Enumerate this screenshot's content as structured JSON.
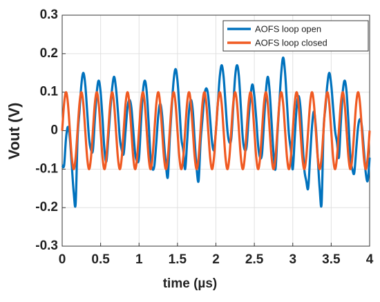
{
  "chart_data": {
    "type": "line",
    "xlabel": "time (µs)",
    "ylabel": "Vout (V)",
    "xlim": [
      0,
      4
    ],
    "ylim": [
      -0.3,
      0.3
    ],
    "xticks": [
      0,
      0.5,
      1,
      1.5,
      2,
      2.5,
      3,
      3.5,
      4
    ],
    "yticks": [
      -0.3,
      -0.2,
      -0.1,
      0,
      0.1,
      0.2,
      0.3
    ],
    "grid": true,
    "legend": "upper right",
    "x": [
      0,
      0.025,
      0.05,
      0.075,
      0.1,
      0.125,
      0.15,
      0.175,
      0.2,
      0.225,
      0.25,
      0.275,
      0.3,
      0.325,
      0.35,
      0.375,
      0.4,
      0.425,
      0.45,
      0.475,
      0.5,
      0.525,
      0.55,
      0.575,
      0.6,
      0.625,
      0.65,
      0.675,
      0.7,
      0.725,
      0.75,
      0.775,
      0.8,
      0.825,
      0.85,
      0.875,
      0.9,
      0.925,
      0.95,
      0.975,
      1,
      1.025,
      1.05,
      1.075,
      1.1,
      1.125,
      1.15,
      1.175,
      1.2,
      1.225,
      1.25,
      1.275,
      1.3,
      1.325,
      1.35,
      1.375,
      1.4,
      1.425,
      1.45,
      1.475,
      1.5,
      1.525,
      1.55,
      1.575,
      1.6,
      1.625,
      1.65,
      1.675,
      1.7,
      1.725,
      1.75,
      1.775,
      1.8,
      1.825,
      1.85,
      1.875,
      1.9,
      1.925,
      1.95,
      1.975,
      2,
      2.025,
      2.05,
      2.075,
      2.1,
      2.125,
      2.15,
      2.175,
      2.2,
      2.225,
      2.25,
      2.275,
      2.3,
      2.325,
      2.35,
      2.375,
      2.4,
      2.425,
      2.45,
      2.475,
      2.5,
      2.525,
      2.55,
      2.575,
      2.6,
      2.625,
      2.65,
      2.675,
      2.7,
      2.725,
      2.75,
      2.775,
      2.8,
      2.825,
      2.85,
      2.875,
      2.9,
      2.925,
      2.95,
      2.975,
      3,
      3.025,
      3.05,
      3.075,
      3.1,
      3.125,
      3.15,
      3.175,
      3.2,
      3.225,
      3.25,
      3.275,
      3.3,
      3.325,
      3.35,
      3.375,
      3.4,
      3.425,
      3.45,
      3.475,
      3.5,
      3.525,
      3.55,
      3.575,
      3.6,
      3.625,
      3.65,
      3.675,
      3.7,
      3.725,
      3.75,
      3.775,
      3.8,
      3.825,
      3.85,
      3.875,
      3.9,
      3.925,
      3.95,
      3.975,
      4
    ],
    "series": [
      {
        "name": "AOFS loop open",
        "color": "#0072bd",
        "values": [
          -0.09,
          -0.09,
          -0.02,
          0.01,
          -0.02,
          -0.09,
          -0.16,
          -0.19,
          -0.02,
          0.05,
          0.12,
          0.15,
          0.12,
          0.05,
          -0.02,
          -0.05,
          -0.05,
          0.03,
          0.1,
          0.13,
          0.1,
          0.03,
          -0.05,
          -0.08,
          -0.02,
          0.05,
          0.11,
          0.14,
          0.11,
          0.05,
          -0.02,
          -0.05,
          -0.06,
          0,
          0.06,
          0.08,
          0.06,
          0,
          -0.06,
          -0.08,
          -0.07,
          0.02,
          0.1,
          0.13,
          0.1,
          0.02,
          -0.07,
          -0.1,
          -0.09,
          -0.03,
          0.04,
          0.07,
          0.04,
          -0.03,
          -0.09,
          -0.12,
          -0.02,
          0.06,
          0.13,
          0.16,
          0.13,
          0.06,
          -0.02,
          -0.05,
          -0.1,
          -0.03,
          0.05,
          0.08,
          0.05,
          -0.03,
          -0.1,
          -0.13,
          -0.03,
          0.03,
          0.09,
          0.11,
          0.09,
          0.03,
          -0.03,
          -0.05,
          0,
          0.07,
          0.14,
          0.17,
          0.14,
          0.07,
          0,
          -0.03,
          -0.02,
          0.06,
          0.14,
          0.17,
          0.14,
          0.06,
          -0.02,
          -0.05,
          -0.04,
          0.03,
          0.09,
          0.12,
          0.09,
          0.03,
          -0.04,
          -0.07,
          -0.06,
          0.02,
          0.1,
          0.14,
          0.1,
          0.02,
          -0.06,
          -0.1,
          -0.01,
          0.07,
          0.15,
          0.19,
          0.15,
          0.07,
          -0.01,
          -0.05,
          -0.1,
          -0.02,
          0.06,
          0.09,
          0.06,
          -0.02,
          -0.1,
          -0.13,
          -0.15,
          -0.07,
          0.01,
          0.05,
          0.01,
          -0.07,
          -0.15,
          -0.19,
          0,
          0.06,
          0.12,
          0.15,
          0.12,
          0.06,
          0,
          -0.03,
          -0.07,
          0.02,
          0.1,
          0.13,
          0.1,
          0.02,
          -0.07,
          -0.1,
          -0.11,
          -0.05,
          0.01,
          0.03,
          0.01,
          -0.05,
          -0.11,
          -0.13,
          -0.07
        ]
      },
      {
        "name": "AOFS loop closed",
        "color": "#f05a22",
        "values": [
          0,
          0.07,
          0.1,
          0.07,
          0,
          -0.07,
          -0.1,
          -0.07,
          0,
          0.07,
          0.1,
          0.07,
          0,
          -0.07,
          -0.1,
          -0.07,
          0,
          0.07,
          0.1,
          0.07,
          0,
          -0.07,
          -0.1,
          -0.07,
          0,
          0.07,
          0.1,
          0.07,
          0,
          -0.07,
          -0.1,
          -0.07,
          0,
          0.07,
          0.1,
          0.07,
          0,
          -0.07,
          -0.1,
          -0.07,
          0,
          0.07,
          0.1,
          0.07,
          0,
          -0.07,
          -0.1,
          -0.07,
          0,
          0.07,
          0.1,
          0.07,
          0,
          -0.07,
          -0.1,
          -0.07,
          0,
          0.07,
          0.1,
          0.07,
          0,
          -0.07,
          -0.1,
          -0.07,
          0,
          0.07,
          0.1,
          0.07,
          0,
          -0.07,
          -0.1,
          -0.07,
          0,
          0.07,
          0.1,
          0.07,
          0,
          -0.07,
          -0.1,
          -0.07,
          0,
          0.07,
          0.1,
          0.07,
          0,
          -0.07,
          -0.1,
          -0.07,
          0,
          0.07,
          0.1,
          0.07,
          0,
          -0.07,
          -0.1,
          -0.07,
          0,
          0.07,
          0.1,
          0.07,
          0,
          -0.07,
          -0.1,
          -0.07,
          0,
          0.07,
          0.1,
          0.07,
          0,
          -0.07,
          -0.1,
          -0.07,
          0,
          0.07,
          0.1,
          0.07,
          0,
          -0.07,
          -0.1,
          -0.07,
          0,
          0.07,
          0.1,
          0.07,
          0,
          -0.07,
          -0.1,
          -0.07,
          0,
          0.07,
          0.1,
          0.07,
          0,
          -0.07,
          -0.1,
          -0.07,
          0,
          0.07,
          0.1,
          0.07,
          0,
          -0.07,
          -0.1,
          -0.07,
          0,
          0.07,
          0.1,
          0.07,
          0,
          -0.07,
          -0.1,
          -0.07,
          0,
          0.07,
          0.1,
          0.07,
          0,
          -0.07,
          -0.1,
          -0.07,
          0
        ]
      }
    ]
  }
}
